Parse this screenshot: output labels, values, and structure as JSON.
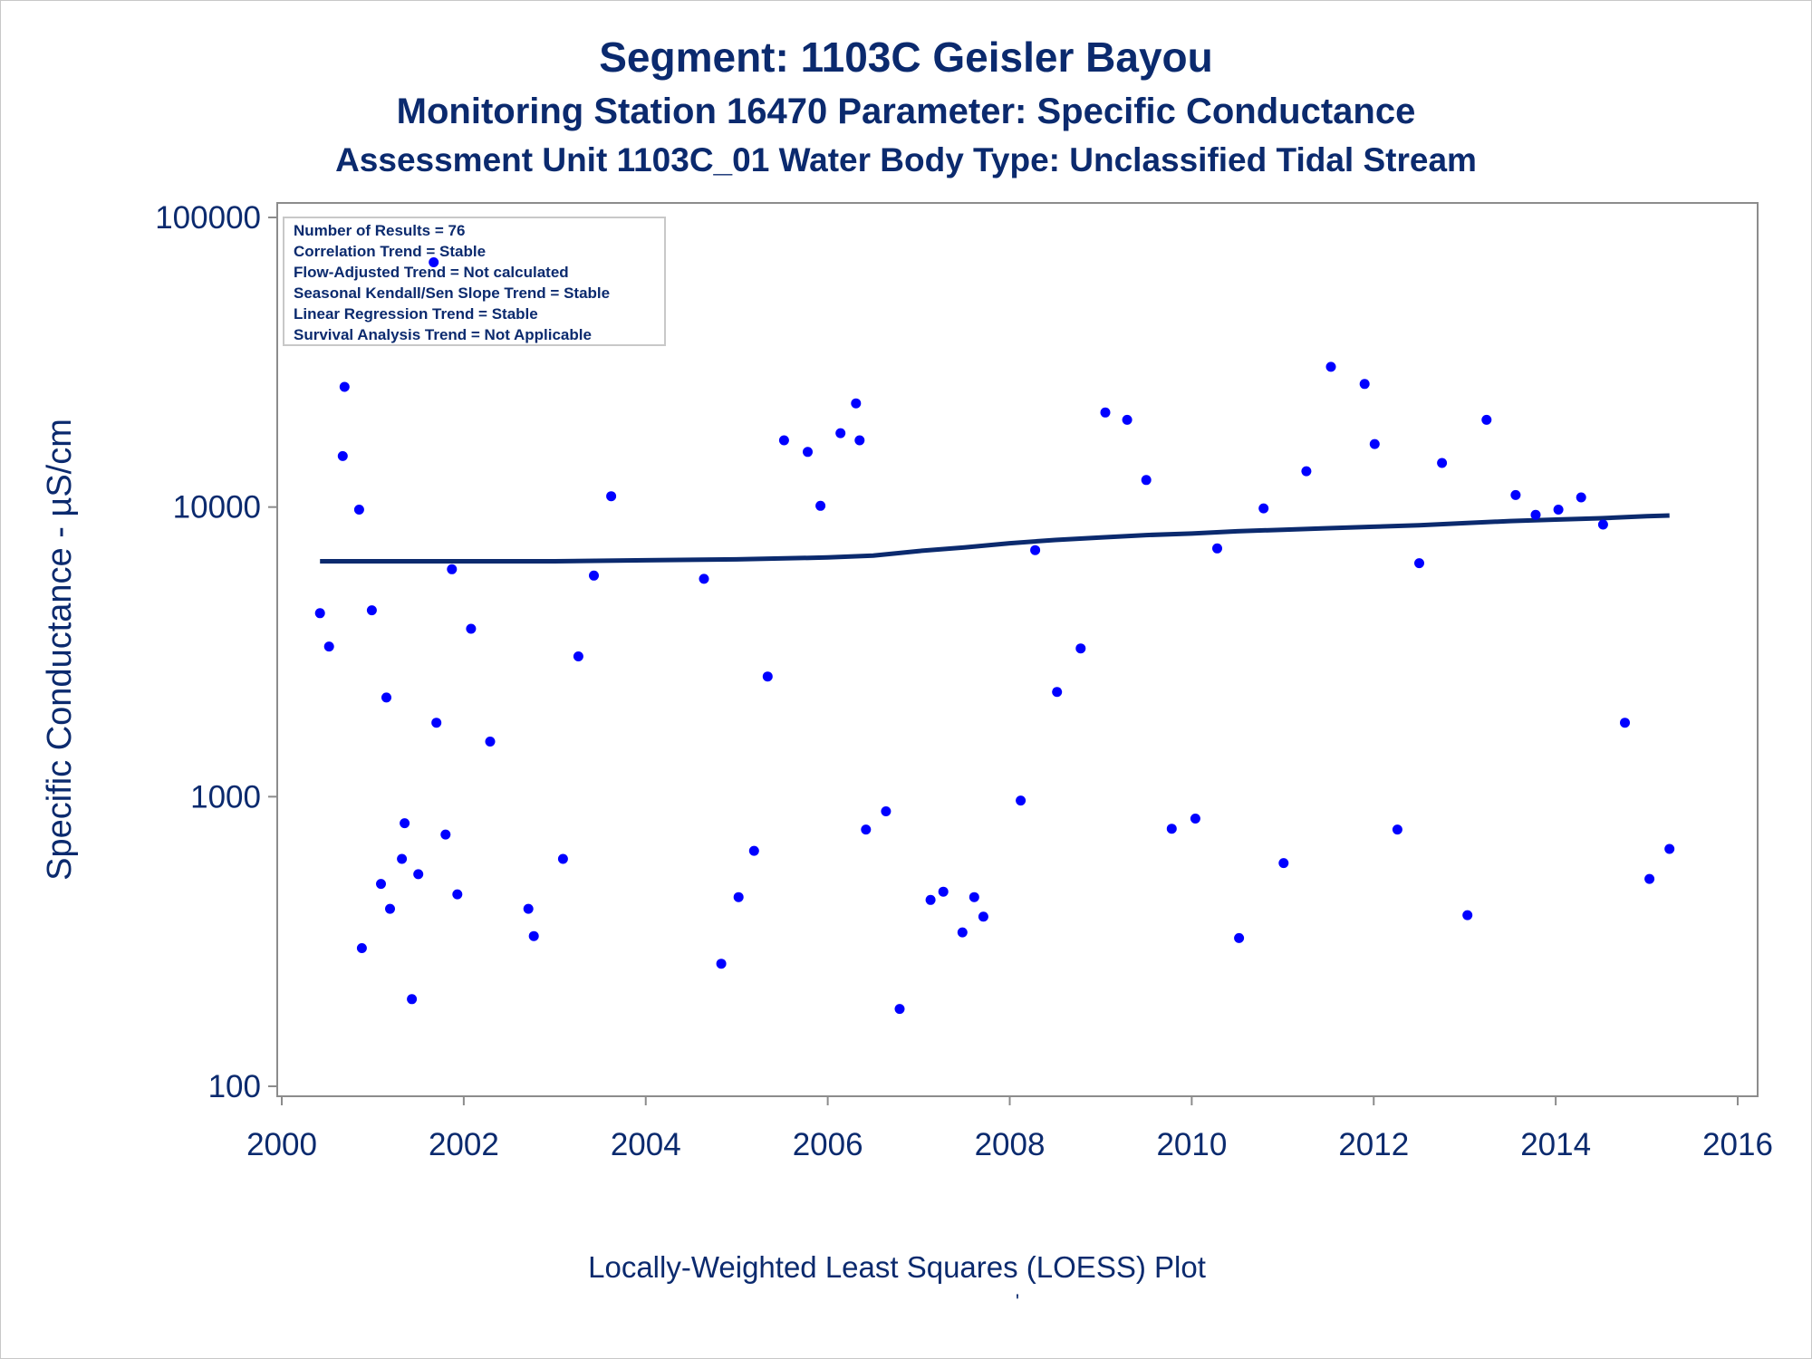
{
  "titles": {
    "line1": "Segment: 1103C  Geisler Bayou",
    "line2": "Monitoring Station 16470 Parameter: Specific Conductance",
    "line3": "Assessment Unit 1103C_01   Water Body Type: Unclassified Tidal Stream"
  },
  "footnote": "Locally-Weighted Least Squares (LOESS) Plot",
  "footnote2": "'",
  "stats_box": [
    "Number of Results = 76",
    "Correlation Trend = Stable",
    "Flow-Adjusted Trend = Not calculated",
    "Seasonal Kendall/Sen Slope Trend = Stable",
    "Linear Regression Trend = Stable",
    "Survival Analysis Trend = Not Applicable"
  ],
  "colors": {
    "text": "#0b2a6e",
    "points": "#0000ff",
    "loess": "#0b2a6e",
    "axis": "#8c8c8c"
  },
  "chart_data": {
    "type": "scatter",
    "xlabel": "",
    "ylabel": "Specific Conductance -  µS/cm",
    "xlim": [
      2000,
      2016
    ],
    "ylim": [
      100,
      100000
    ],
    "yscale": "log",
    "xticks": [
      "2000",
      "2002",
      "2004",
      "2006",
      "2008",
      "2010",
      "2012",
      "2014",
      "2016"
    ],
    "yticks": [
      "100",
      "1000",
      "10000",
      "100000"
    ],
    "grid": false,
    "legend": "top-left",
    "series": [
      {
        "kind": "points",
        "x": [
          2000.42,
          2000.52,
          2000.67,
          2000.69,
          2000.85,
          2000.88,
          2000.99,
          2001.09,
          2001.15,
          2001.19,
          2001.32,
          2001.35,
          2001.43,
          2001.5,
          2001.67,
          2001.7,
          2001.8,
          2001.87,
          2001.93,
          2002.08,
          2002.29,
          2002.71,
          2002.77,
          2003.09,
          2003.26,
          2003.43,
          2003.62,
          2004.64,
          2004.83,
          2005.02,
          2005.19,
          2005.34,
          2005.52,
          2005.78,
          2005.92,
          2006.14,
          2006.31,
          2006.35,
          2006.42,
          2006.64,
          2006.79,
          2007.13,
          2007.27,
          2007.48,
          2007.61,
          2007.71,
          2008.12,
          2008.28,
          2008.52,
          2008.78,
          2009.05,
          2009.29,
          2009.5,
          2009.78,
          2010.04,
          2010.28,
          2010.52,
          2010.79,
          2011.01,
          2011.26,
          2011.53,
          2011.9,
          2012.01,
          2012.26,
          2012.5,
          2012.75,
          2013.03,
          2013.24,
          2013.56,
          2013.78,
          2014.03,
          2014.28,
          2014.52,
          2014.76,
          2015.03,
          2015.25
        ],
        "y": [
          4300,
          3300,
          15000,
          26000,
          9800,
          300,
          4400,
          500,
          2200,
          410,
          610,
          810,
          200,
          540,
          70000,
          1800,
          740,
          6100,
          460,
          3800,
          1550,
          410,
          330,
          610,
          3050,
          5800,
          10900,
          5650,
          265,
          450,
          650,
          2600,
          17000,
          15500,
          10100,
          18000,
          22800,
          17000,
          770,
          890,
          185,
          440,
          470,
          340,
          450,
          385,
          970,
          7100,
          2300,
          3250,
          21200,
          20000,
          12400,
          775,
          840,
          7200,
          325,
          9900,
          590,
          13300,
          30500,
          26600,
          16500,
          770,
          6400,
          14200,
          390,
          20000,
          11000,
          9400,
          9800,
          10800,
          8700,
          1800,
          520,
          660
        ]
      },
      {
        "kind": "loess",
        "x": [
          2000.42,
          2001.0,
          2002.0,
          2003.0,
          2004.0,
          2005.0,
          2006.0,
          2006.5,
          2007.0,
          2007.5,
          2008.0,
          2008.5,
          2009.0,
          2009.5,
          2010.0,
          2010.5,
          2011.0,
          2011.5,
          2012.0,
          2012.5,
          2013.0,
          2013.5,
          2014.0,
          2014.5,
          2015.0,
          2015.25
        ],
        "y": [
          6500,
          6500,
          6500,
          6500,
          6550,
          6600,
          6700,
          6800,
          7050,
          7250,
          7500,
          7700,
          7850,
          8000,
          8100,
          8250,
          8350,
          8450,
          8550,
          8650,
          8800,
          8950,
          9050,
          9150,
          9300,
          9350
        ]
      }
    ]
  }
}
